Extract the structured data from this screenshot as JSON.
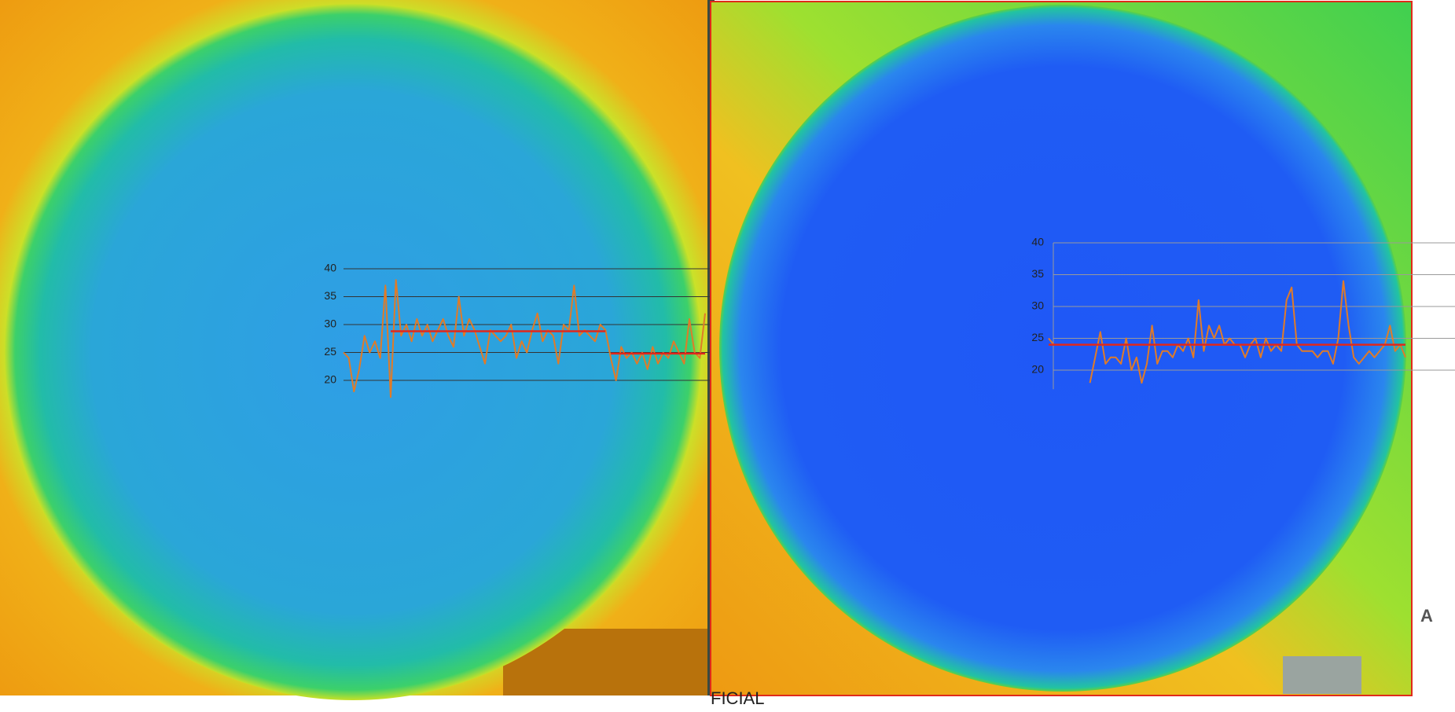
{
  "chart_data": [
    {
      "type": "line",
      "categories": [
        null,
        null,
        null,
        null,
        null,
        null,
        null,
        null,
        null,
        null,
        null,
        null,
        null,
        null,
        null,
        null,
        null,
        null,
        null,
        null,
        null,
        null,
        null,
        null,
        null,
        null,
        null,
        null,
        null,
        null,
        null,
        null,
        null,
        null,
        null,
        null,
        null,
        null,
        null,
        null,
        null,
        null,
        null,
        null,
        null,
        null,
        null,
        null,
        null,
        null,
        null,
        null,
        null,
        null,
        null,
        null,
        null,
        null,
        null,
        null,
        null,
        null,
        null,
        null,
        null,
        null,
        null,
        null,
        null,
        null
      ],
      "series": [
        {
          "color": "#e07b28",
          "values": [
            25,
            24,
            18,
            22,
            28,
            25,
            27,
            24,
            37,
            17,
            38,
            28,
            30,
            27,
            31,
            28,
            30,
            27,
            29,
            31,
            28,
            26,
            35,
            28,
            31,
            29,
            26,
            23,
            29,
            28,
            27,
            28,
            30,
            24,
            27,
            25,
            29,
            32,
            27,
            29,
            28,
            23,
            30,
            29,
            37,
            28,
            29,
            28,
            27,
            30,
            29,
            24,
            20,
            26,
            24,
            25,
            23,
            25,
            22,
            26,
            23,
            25,
            24,
            27,
            25,
            23,
            31,
            25,
            24,
            32
          ]
        },
        {
          "color": "#e0281c",
          "values": [
            null,
            null,
            null,
            null,
            null,
            null,
            null,
            null,
            null,
            28.8,
            28.8,
            28.8,
            28.8,
            28.8,
            28.8,
            28.8,
            28.8,
            28.8,
            28.8,
            28.8,
            28.8,
            28.8,
            28.8,
            28.8,
            28.8,
            28.8,
            28.8,
            28.8,
            28.8,
            28.8,
            28.8,
            28.8,
            28.8,
            28.8,
            28.8,
            28.8,
            28.8,
            28.8,
            28.8,
            28.8,
            28.8,
            28.8,
            28.8,
            28.8,
            28.8,
            28.8,
            28.8,
            28.8,
            28.8,
            28.8,
            28.8,
            null,
            null,
            null,
            null,
            null,
            null,
            null,
            null,
            null,
            null,
            null,
            null,
            null,
            null,
            null,
            null,
            null,
            null,
            null
          ]
        },
        {
          "color": "#e0281c",
          "values": [
            null,
            null,
            null,
            null,
            null,
            null,
            null,
            null,
            null,
            null,
            null,
            null,
            null,
            null,
            null,
            null,
            null,
            null,
            null,
            null,
            null,
            null,
            null,
            null,
            null,
            null,
            null,
            null,
            null,
            null,
            null,
            null,
            null,
            null,
            null,
            null,
            null,
            null,
            null,
            null,
            null,
            null,
            null,
            null,
            null,
            null,
            null,
            null,
            null,
            null,
            null,
            24.8,
            24.8,
            24.8,
            24.8,
            24.8,
            24.8,
            24.8,
            24.8,
            24.8,
            24.8,
            24.8,
            24.8,
            24.8,
            24.8,
            24.8,
            24.8,
            24.8,
            24.8,
            24.8
          ]
        }
      ],
      "ylim": [
        17,
        40
      ],
      "yticks": [
        20,
        25,
        30,
        35,
        40
      ],
      "grid": true
    },
    {
      "type": "line",
      "categories": [
        null,
        null,
        null,
        null,
        null,
        null,
        null,
        null,
        null,
        null,
        null,
        null,
        null,
        null,
        null,
        null,
        null,
        null,
        null,
        null,
        null,
        null,
        null,
        null,
        null,
        null,
        null,
        null,
        null,
        null,
        null,
        null,
        null,
        null,
        null,
        null,
        null,
        null,
        null,
        null,
        null,
        null,
        null,
        null,
        null,
        null,
        null,
        null,
        null,
        null,
        null,
        null,
        null,
        null,
        null,
        null,
        null,
        null,
        null,
        null,
        null,
        null,
        null,
        null,
        null,
        null,
        null,
        null,
        null,
        null
      ],
      "series": [
        {
          "color": "#e07b28",
          "values": [
            25,
            24,
            null,
            null,
            null,
            null,
            null,
            null,
            18,
            22,
            26,
            21,
            22,
            22,
            21,
            25,
            20,
            22,
            18,
            21,
            27,
            21,
            23,
            23,
            22,
            24,
            23,
            25,
            22,
            31,
            23,
            27,
            25,
            27,
            24,
            25,
            24,
            24,
            22,
            24,
            25,
            22,
            25,
            23,
            24,
            23,
            31,
            33,
            24,
            23,
            23,
            23,
            22,
            23,
            23,
            21,
            25,
            34,
            27,
            22,
            21,
            22,
            23,
            22,
            23,
            24,
            27,
            23,
            24,
            22
          ]
        },
        {
          "color": "#e0281c",
          "values": [
            24,
            24,
            24,
            24,
            24,
            24,
            24,
            24,
            24,
            24,
            24,
            24,
            24,
            24,
            24,
            24,
            24,
            24,
            24,
            24,
            24,
            24,
            24,
            24,
            24,
            24,
            24,
            24,
            24,
            24,
            24,
            24,
            24,
            24,
            24,
            24,
            24,
            24,
            24,
            24,
            24,
            24,
            24,
            24,
            24,
            24,
            24,
            24,
            24,
            24,
            24,
            24,
            24,
            24,
            24,
            24,
            24,
            24,
            24,
            24,
            24,
            24,
            24,
            24,
            24,
            24,
            24,
            24,
            24,
            24
          ]
        }
      ],
      "ylim": [
        17,
        40
      ],
      "yticks": [
        20,
        25,
        30,
        35,
        40
      ],
      "grid": true
    }
  ],
  "side_label": "A",
  "footer_text": "FICIAL"
}
